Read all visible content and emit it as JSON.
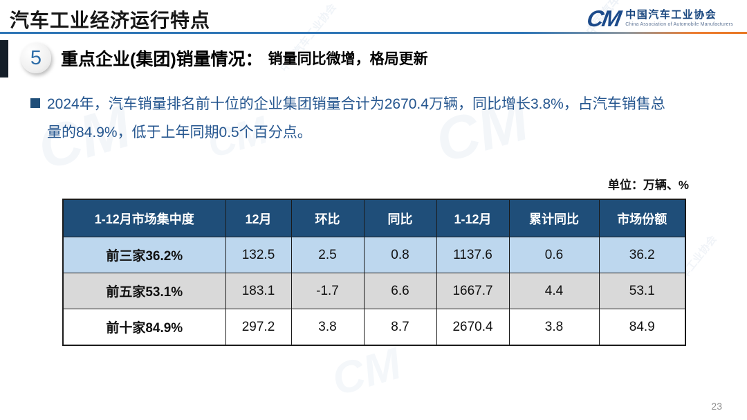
{
  "page": {
    "title": "汽车工业经济运行特点",
    "page_number": "23"
  },
  "logo": {
    "mark": "CM",
    "name_cn": "中国汽车工业协会",
    "name_en": "China Association of Automobile Manufacturers"
  },
  "section": {
    "number": "5",
    "title": "重点企业(集团)销量情况：",
    "subtitle": "销量同比微增，格局更新"
  },
  "bullet": {
    "lines": [
      "2024年，汽车销量排名前十位的企业集团销量合计为2670.4万辆，同比增长3.8%，占汽车销售总",
      "量的84.9%，低于上年同期0.5个百分点。"
    ]
  },
  "chart_data": {
    "type": "table",
    "unit_note": "单位：万辆、%",
    "columns": [
      "1-12月市场集中度",
      "12月",
      "环比",
      "同比",
      "1-12月",
      "累计同比",
      "市场份额"
    ],
    "rows": [
      {
        "label": "前三家36.2%",
        "values": [
          "132.5",
          "2.5",
          "0.8",
          "1137.6",
          "0.6",
          "36.2"
        ]
      },
      {
        "label": "前五家53.1%",
        "values": [
          "183.1",
          "-1.7",
          "6.6",
          "1667.7",
          "4.4",
          "53.1"
        ]
      },
      {
        "label": "前十家84.9%",
        "values": [
          "297.2",
          "3.8",
          "8.7",
          "2670.4",
          "3.8",
          "84.9"
        ]
      }
    ]
  },
  "colors": {
    "header_bg": "#1F4E79",
    "row_blue": "#BDD7EE",
    "row_gray": "#D9D9D9",
    "accent_blue": "#2E75B6",
    "accent_orange": "#ED7D31",
    "body_text_blue": "#25568F"
  },
  "watermark": {
    "mark": "CM",
    "text": "中国汽车工业协会"
  }
}
